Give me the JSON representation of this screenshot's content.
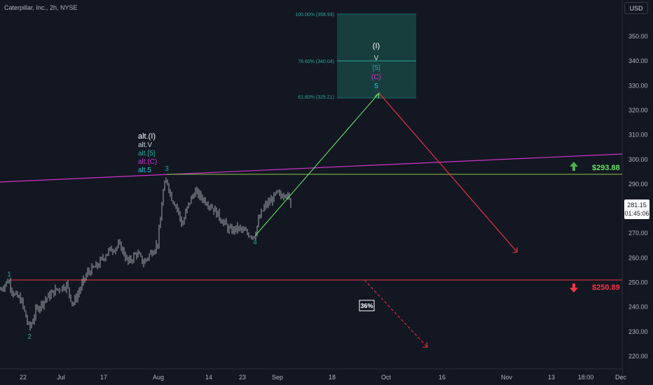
{
  "header": {
    "symbol_title": "Caterpillar, Inc., 2h, NYSE",
    "currency_button": "USD"
  },
  "colors": {
    "background": "#131722",
    "candles": "#c8cad0",
    "green": "#4caf50",
    "red": "#f23645",
    "magenta": "#cc33cc",
    "teal": "#26a69a",
    "fib_zone": "#1b5e52"
  },
  "current_price": {
    "price": "281.15",
    "countdown": "01:45:06"
  },
  "chart_data": {
    "type": "candlestick",
    "title": "Caterpillar, Inc., 2h, NYSE",
    "xlabel": "",
    "ylabel": "",
    "ylim": [
      216,
      366
    ],
    "y_ticks": [
      "220.00",
      "230.00",
      "240.00",
      "250.00",
      "260.00",
      "270.00",
      "280.00",
      "290.00",
      "300.00",
      "310.00",
      "320.00",
      "330.00",
      "340.00",
      "350.00"
    ],
    "x_ticks": [
      "22",
      "Jul",
      "17",
      "Aug",
      "14",
      "23",
      "Sep",
      "18",
      "Oct",
      "16",
      "Nov",
      "13",
      "18:00",
      "Dec"
    ],
    "price_path": [
      [
        0,
        247
      ],
      [
        12,
        251
      ],
      [
        20,
        245
      ],
      [
        30,
        243
      ],
      [
        42,
        231
      ],
      [
        52,
        239
      ],
      [
        64,
        243
      ],
      [
        80,
        247
      ],
      [
        95,
        249
      ],
      [
        104,
        241
      ],
      [
        112,
        246
      ],
      [
        125,
        254
      ],
      [
        140,
        257
      ],
      [
        152,
        262
      ],
      [
        162,
        264
      ],
      [
        172,
        265
      ],
      [
        183,
        258
      ],
      [
        195,
        262
      ],
      [
        205,
        258
      ],
      [
        215,
        262
      ],
      [
        225,
        266
      ],
      [
        229,
        275
      ],
      [
        232,
        286
      ],
      [
        238,
        292
      ],
      [
        244,
        285
      ],
      [
        252,
        281
      ],
      [
        260,
        273
      ],
      [
        268,
        281
      ],
      [
        278,
        287
      ],
      [
        290,
        284
      ],
      [
        302,
        281
      ],
      [
        315,
        276
      ],
      [
        328,
        271
      ],
      [
        340,
        272
      ],
      [
        352,
        270
      ],
      [
        363,
        269
      ],
      [
        370,
        276
      ],
      [
        378,
        281
      ],
      [
        386,
        283
      ],
      [
        395,
        286
      ],
      [
        401,
        285
      ],
      [
        407,
        287
      ],
      [
        412,
        284
      ],
      [
        416,
        281
      ]
    ],
    "fib_levels": [
      {
        "label": "100.00% (358.93)",
        "value": 358.93
      },
      {
        "label": "78.60% (340.04)",
        "value": 340.04
      },
      {
        "label": "61.80% (325.21)",
        "value": 325.21
      }
    ],
    "resistance": {
      "label": "$293.88",
      "value": 293.88
    },
    "support": {
      "label": "$250.89",
      "value": 250.89
    },
    "probability_label": "36%",
    "wave_labels": {
      "w1": "1",
      "w2": "2",
      "w3": "3",
      "w4": "4",
      "top_stack": [
        "(I)",
        "V",
        "[5]",
        "(C)",
        "5"
      ],
      "alt_stack": [
        "alt.(I)",
        "alt.V",
        "alt.[5]",
        "alt.(C)",
        "alt.5"
      ]
    }
  }
}
